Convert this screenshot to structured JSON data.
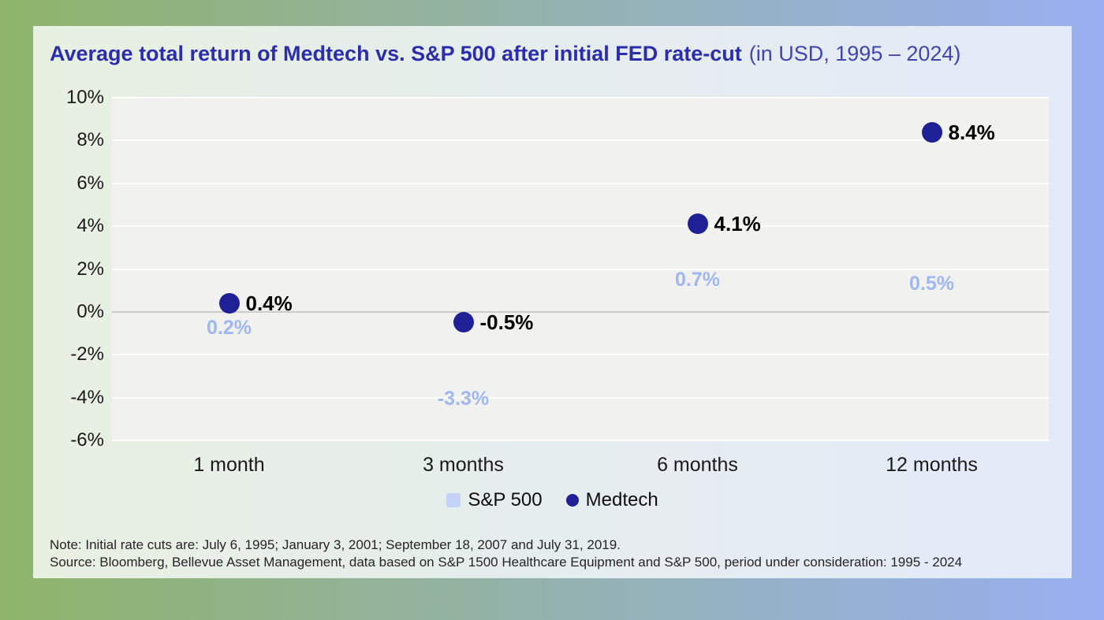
{
  "title": {
    "main": "Average total return of Medtech vs. S&P 500 after initial FED rate-cut",
    "suffix": "(in USD, 1995 – 2024)"
  },
  "chart_data": {
    "type": "bar",
    "subtype": "bar-with-dot-overlay",
    "categories": [
      "1 month",
      "3 months",
      "6 months",
      "12 months"
    ],
    "series": [
      {
        "name": "S&P 500",
        "style": "bar",
        "values": [
          0.2,
          -3.3,
          0.7,
          0.5
        ],
        "labels": [
          "0.2%",
          "-3.3%",
          "0.7%",
          "0.5%"
        ]
      },
      {
        "name": "Medtech",
        "style": "dot",
        "values": [
          0.4,
          -0.5,
          4.1,
          8.4
        ],
        "labels": [
          "0.4%",
          "-0.5%",
          "4.1%",
          "8.4%"
        ]
      }
    ],
    "ylim": [
      -6,
      10
    ],
    "ytick_step": 2,
    "ytick_labels": [
      "10%",
      "8%",
      "6%",
      "4%",
      "2%",
      "0%",
      "-2%",
      "-4%",
      "-6%"
    ],
    "grid": true,
    "legend_position": "bottom"
  },
  "footnotes": {
    "note": "Note: Initial rate cuts are: July 6, 1995; January 3, 2001; September 18, 2007 and July 31, 2019.",
    "source": "Source: Bloomberg, Bellevue Asset Management, data based on S&P 1500 Healthcare Equipment and S&P 500, period under consideration: 1995 - 2024"
  },
  "palette": {
    "page_gradient": [
      "#8fb46a",
      "#98b0f2"
    ],
    "card_gradient": [
      "#e8f0e2",
      "#e4eaf9"
    ],
    "plot_bg": "#f1f2ef",
    "grid_line": "#ffffff",
    "zero_line": "#cdcdcc",
    "title": "#2a2eae",
    "subtitle": "#4145b4",
    "bar": "#c5d2f7",
    "bar_label": "#9fb7f2",
    "dot": "#1f2096",
    "text": "#1a1a1a",
    "footnote": "#252525"
  }
}
